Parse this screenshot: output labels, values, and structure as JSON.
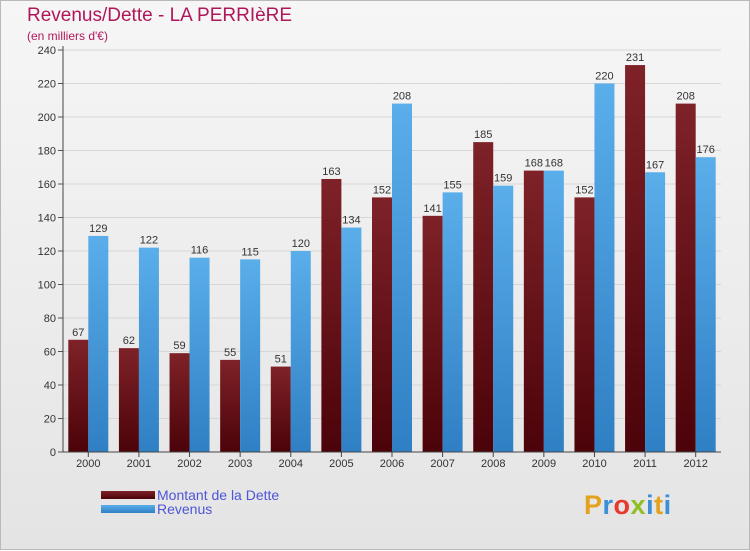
{
  "chart_data": {
    "type": "bar",
    "title": "Revenus/Dette - LA PERRIèRE",
    "subtitle": "(en milliers d'€)",
    "categories": [
      "2000",
      "2001",
      "2002",
      "2003",
      "2004",
      "2005",
      "2006",
      "2007",
      "2008",
      "2009",
      "2010",
      "2011",
      "2012"
    ],
    "series": [
      {
        "name": "Montant de la Dette",
        "values": [
          67,
          62,
          59,
          55,
          51,
          163,
          152,
          141,
          185,
          168,
          152,
          231,
          208
        ],
        "color": "#7a1a22"
      },
      {
        "name": "Revenus",
        "values": [
          129,
          122,
          116,
          115,
          120,
          134,
          208,
          155,
          159,
          168,
          220,
          167,
          176
        ],
        "color": "#4fa3e0"
      }
    ],
    "ylim": [
      0,
      240
    ],
    "yticks": [
      0,
      20,
      40,
      60,
      80,
      100,
      120,
      140,
      160,
      180,
      200,
      220,
      240
    ],
    "grid": true,
    "legend_position": "bottom-left"
  },
  "brand": {
    "logo_text": "Proxiti"
  }
}
